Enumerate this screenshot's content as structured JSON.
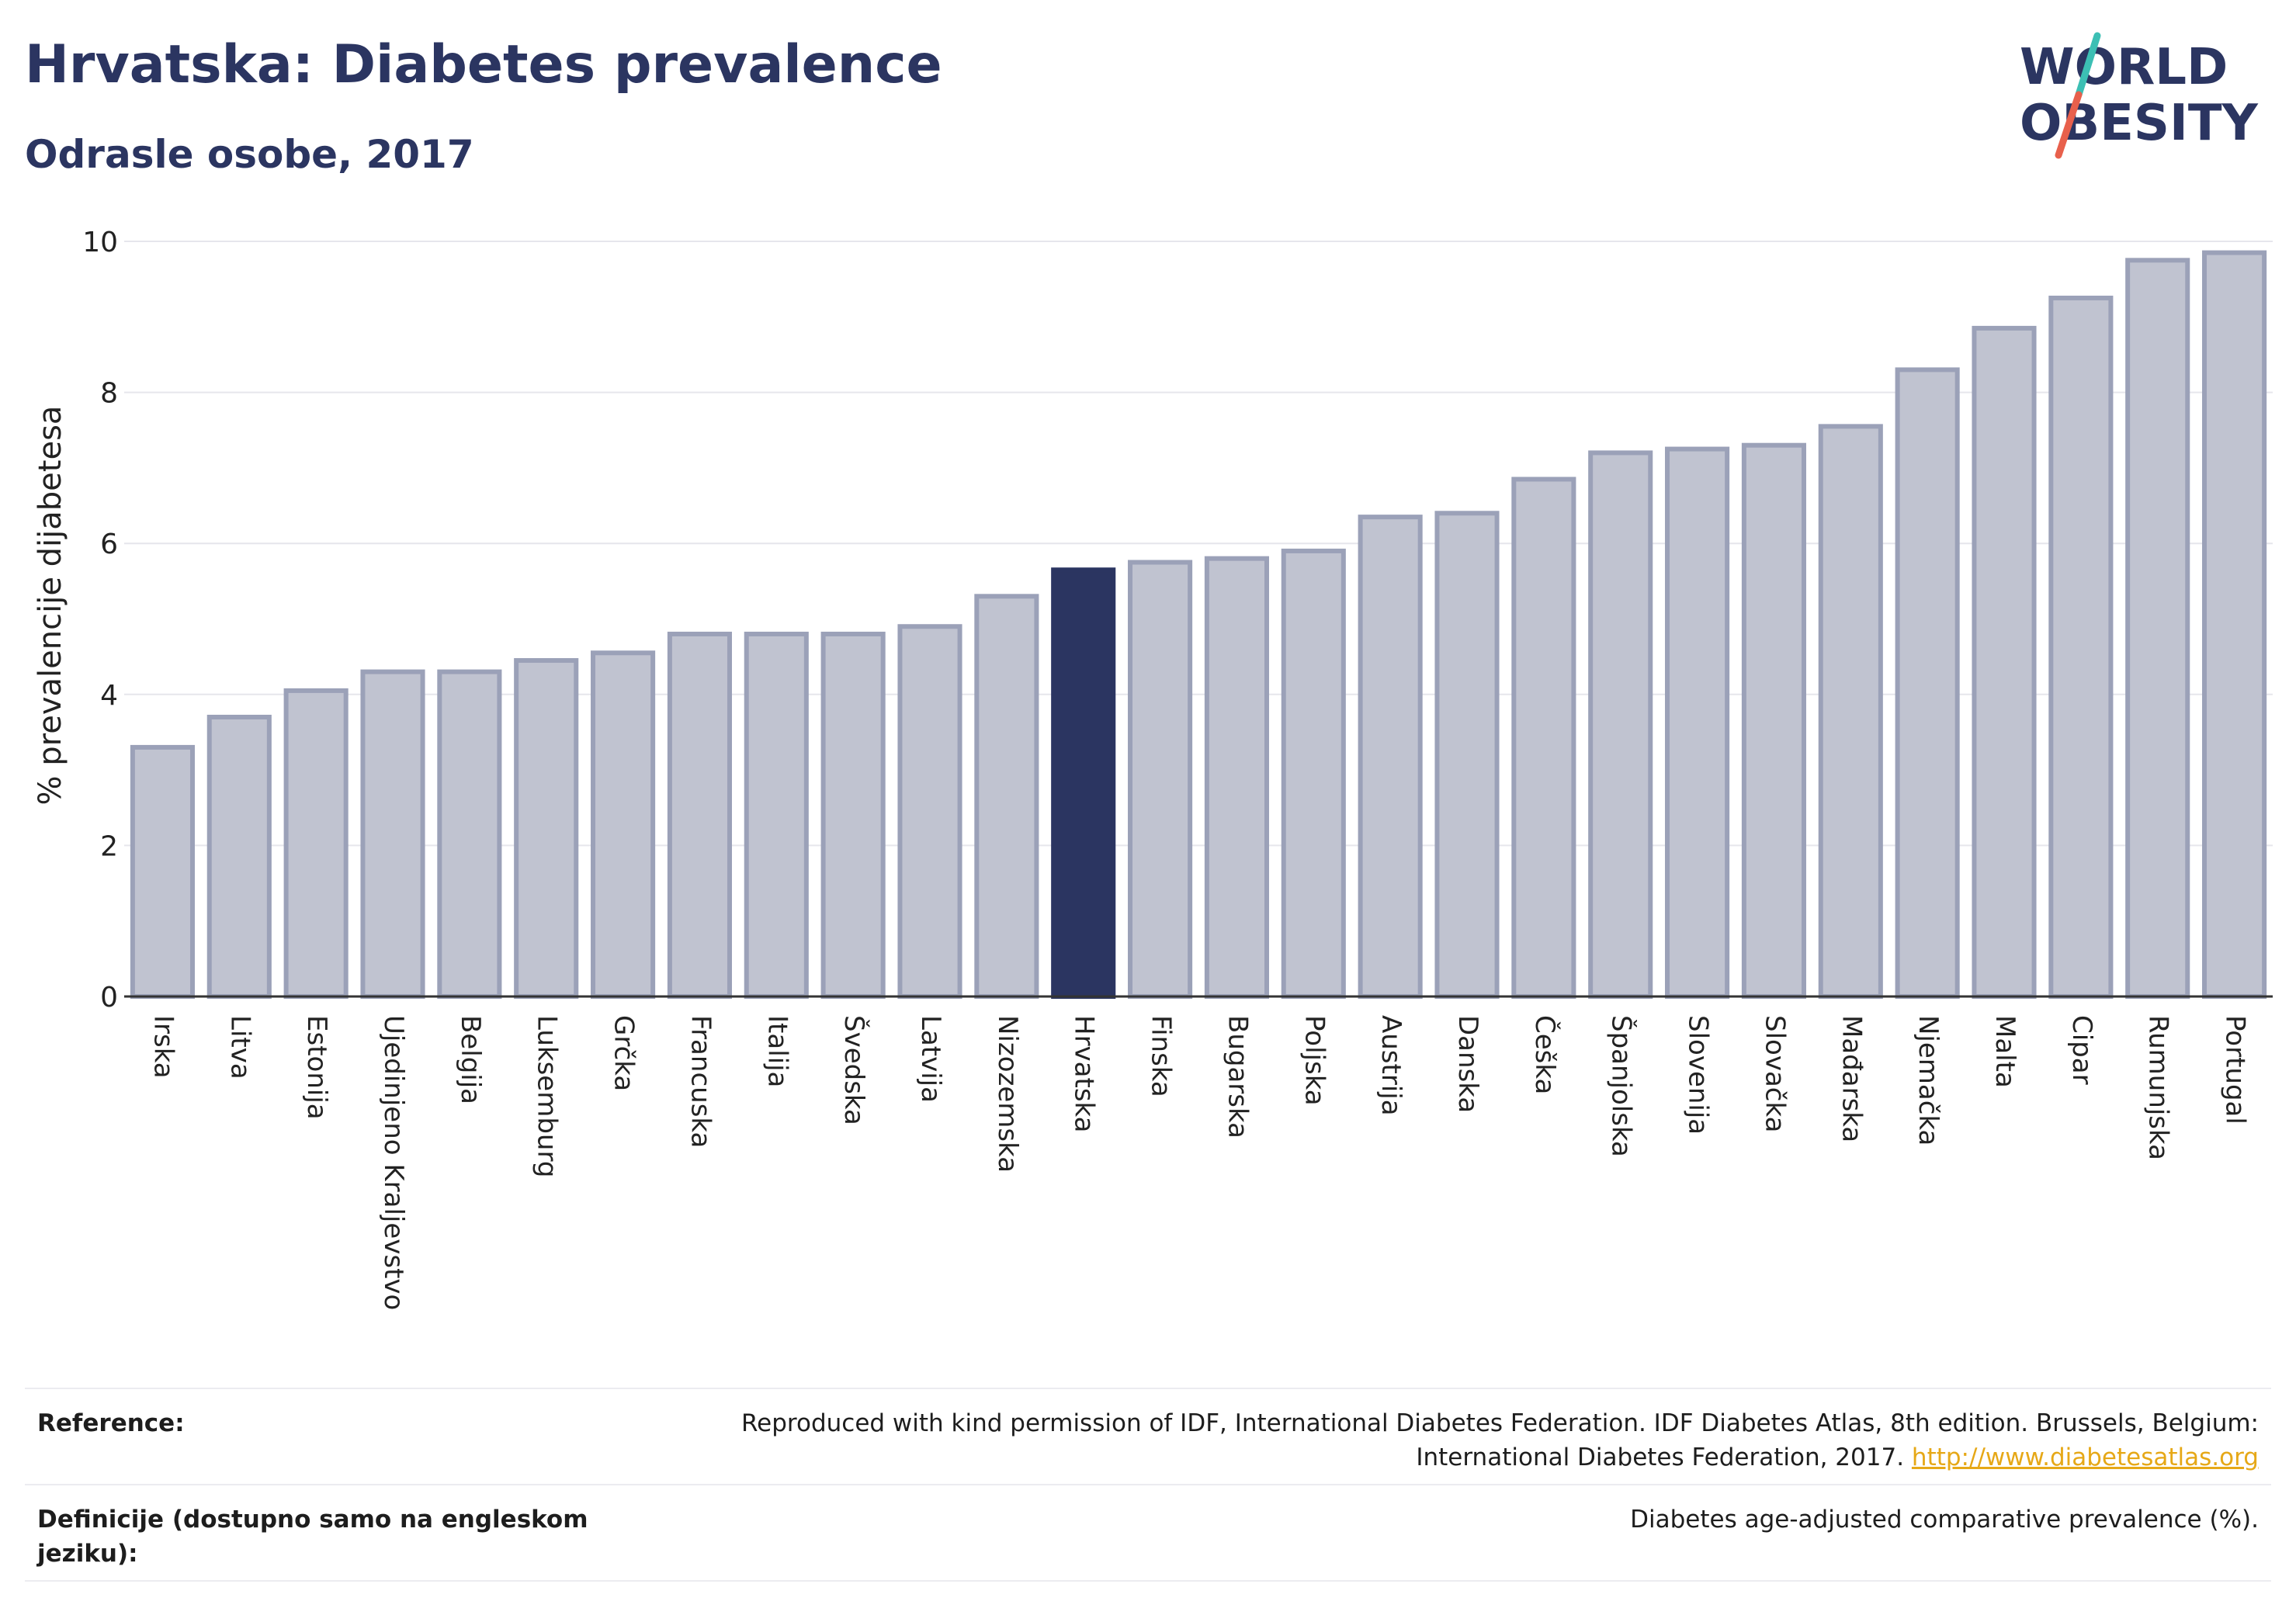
{
  "header": {
    "title": "Hrvatska: Diabetes prevalence",
    "subtitle": "Odrasle osobe, 2017"
  },
  "logo": {
    "line1": "WORLD",
    "line2": "OBESITY",
    "slash_color_top": "#3cbfb4",
    "slash_color_bottom": "#e8604c"
  },
  "colors": {
    "bar_fill": "#c0c3d0",
    "bar_stroke": "#9ba1b8",
    "highlight": "#2b3561",
    "grid": "#e6e6ec"
  },
  "chart_data": {
    "type": "bar",
    "ylabel": "% prevalencije dijabetesa",
    "ylim": [
      0,
      10
    ],
    "yticks": [
      0,
      2,
      4,
      6,
      8,
      10
    ],
    "grid": true,
    "highlight_category": "Hrvatska",
    "categories": [
      "Irska",
      "Litva",
      "Estonija",
      "Ujedinjeno Kraljevstvo",
      "Belgija",
      "Luksemburg",
      "Grčka",
      "Francuska",
      "Italija",
      "Švedska",
      "Latvija",
      "Nizozemska",
      "Hrvatska",
      "Finska",
      "Bugarska",
      "Poljska",
      "Austrija",
      "Danska",
      "Češka",
      "Španjolska",
      "Slovenija",
      "Slovačka",
      "Mađarska",
      "Njemačka",
      "Malta",
      "Cipar",
      "Rumunjska",
      "Portugal"
    ],
    "values": [
      3.3,
      3.7,
      4.05,
      4.3,
      4.3,
      4.45,
      4.55,
      4.8,
      4.8,
      4.8,
      4.9,
      5.3,
      5.65,
      5.75,
      5.8,
      5.9,
      6.35,
      6.4,
      6.85,
      7.2,
      7.25,
      7.3,
      7.55,
      8.3,
      8.85,
      9.25,
      9.75,
      9.85
    ]
  },
  "footer": {
    "reference_label": "Reference:",
    "reference_text": "Reproduced with kind permission of IDF, International Diabetes Federation. IDF Diabetes Atlas, 8th edition. Brussels, Belgium: International Diabetes Federation, 2017.",
    "reference_link": "http://www.diabetesatlas.org",
    "definition_label": "Definicije (dostupno samo na engleskom jeziku):",
    "definition_text": "Diabetes age-adjusted comparative prevalence (%)."
  }
}
